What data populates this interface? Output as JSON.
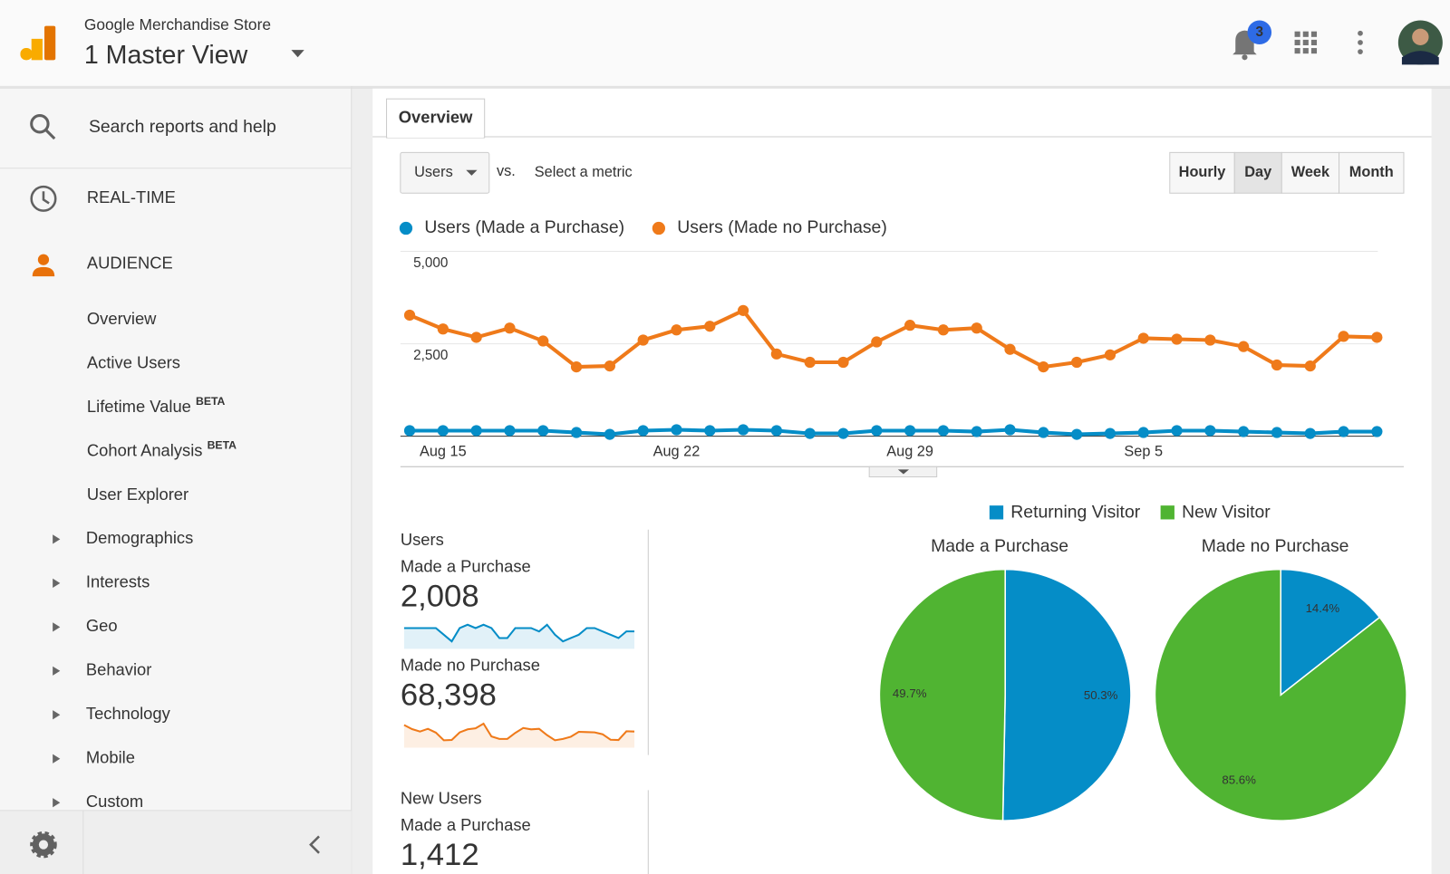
{
  "header": {
    "property": "Google Merchandise Store",
    "view": "1 Master View",
    "notifications": "3"
  },
  "sidebar": {
    "search": "Search reports and help",
    "sections": [
      "REAL-TIME",
      "AUDIENCE"
    ],
    "items": [
      {
        "label": "Overview",
        "active": true
      },
      {
        "label": "Active Users"
      },
      {
        "label": "Lifetime Value",
        "badge": "BETA"
      },
      {
        "label": "Cohort Analysis",
        "badge": "BETA"
      },
      {
        "label": "User Explorer"
      },
      {
        "label": "Demographics",
        "expandable": true
      },
      {
        "label": "Interests",
        "expandable": true
      },
      {
        "label": "Geo",
        "expandable": true
      },
      {
        "label": "Behavior",
        "expandable": true
      },
      {
        "label": "Technology",
        "expandable": true
      },
      {
        "label": "Mobile",
        "expandable": true
      },
      {
        "label": "Custom",
        "expandable": true
      }
    ]
  },
  "tabs": [
    "Overview"
  ],
  "controls": {
    "metric": "Users",
    "vs": "vs.",
    "select": "Select a metric",
    "granularity": [
      {
        "label": "Hourly"
      },
      {
        "label": "Day",
        "active": true
      },
      {
        "label": "Week"
      },
      {
        "label": "Month"
      }
    ]
  },
  "scorecards": [
    {
      "title": "Users",
      "rows": [
        {
          "label": "Made a Purchase",
          "value": "2,008"
        },
        {
          "label": "Made no Purchase",
          "value": "68,398"
        }
      ]
    },
    {
      "title": "New Users",
      "rows": [
        {
          "label": "Made a Purchase",
          "value": "1,412"
        }
      ]
    }
  ],
  "chart_data": [
    {
      "type": "line",
      "categories": [
        null,
        "Aug 15",
        null,
        null,
        null,
        null,
        null,
        null,
        "Aug 22",
        null,
        null,
        null,
        null,
        null,
        null,
        "Aug 29",
        null,
        null,
        null,
        null,
        null,
        null,
        "Sep 5",
        null,
        null,
        null,
        null,
        null,
        null,
        null
      ],
      "series": [
        {
          "name": "Users (Made a Purchase)",
          "color": "#058dc7",
          "values": [
            150,
            150,
            150,
            150,
            150,
            100,
            50,
            150,
            175,
            150,
            175,
            150,
            75,
            75,
            150,
            150,
            150,
            125,
            175,
            100,
            50,
            75,
            100,
            150,
            150,
            125,
            100,
            75,
            125,
            125
          ]
        },
        {
          "name": "Users (Made no Purchase)",
          "color": "#ef7a1a",
          "values": [
            3275,
            2900,
            2675,
            2925,
            2575,
            1875,
            1900,
            2600,
            2875,
            2975,
            3400,
            2225,
            2000,
            2000,
            2550,
            3000,
            2875,
            2925,
            2350,
            1875,
            2000,
            2200,
            2650,
            2625,
            2600,
            2425,
            1925,
            1900,
            2700,
            2675
          ]
        }
      ],
      "ylim": [
        0,
        5000
      ],
      "yticks": [
        {
          "value": 2500,
          "label": "2,500"
        },
        {
          "value": 5000,
          "label": "5,000"
        }
      ],
      "grid": true
    },
    {
      "type": "pie",
      "title": "Made a Purchase",
      "categories": [
        "Returning Visitor",
        "New Visitor"
      ],
      "colors": [
        "#058dc7",
        "#50b432"
      ],
      "values": [
        50.3,
        49.7
      ],
      "value_labels": [
        "50.3%",
        "49.7%"
      ]
    },
    {
      "type": "pie",
      "title": "Made no Purchase",
      "colors": [
        "#058dc7",
        "#50b432"
      ],
      "values": [
        14.4,
        85.6
      ],
      "value_labels": [
        "14.4%",
        "85.6%"
      ]
    }
  ]
}
